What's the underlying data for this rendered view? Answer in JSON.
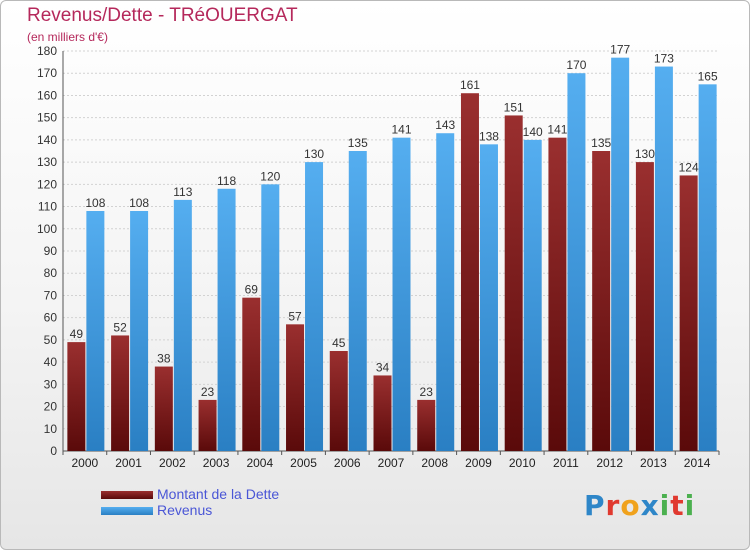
{
  "chart_data": {
    "type": "bar",
    "title": "Revenus/Dette - TRéOUERGAT",
    "subtitle": "(en milliers d'€)",
    "categories": [
      "2000",
      "2001",
      "2002",
      "2003",
      "2004",
      "2005",
      "2006",
      "2007",
      "2008",
      "2009",
      "2010",
      "2011",
      "2012",
      "2013",
      "2014"
    ],
    "series": [
      {
        "name": "Montant de la Dette",
        "color": "#7a1a1a",
        "values": [
          49,
          52,
          38,
          23,
          69,
          57,
          45,
          34,
          23,
          161,
          151,
          141,
          135,
          130,
          124
        ]
      },
      {
        "name": "Revenus",
        "color": "#3b97dd",
        "values": [
          108,
          108,
          113,
          118,
          120,
          130,
          135,
          141,
          143,
          138,
          140,
          170,
          177,
          173,
          165
        ]
      }
    ],
    "ylim": [
      0,
      180
    ],
    "ytick_step": 10,
    "grid": true,
    "legend_position": "bottom-left"
  },
  "branding": {
    "logo_letters": [
      {
        "char": "P",
        "color": "#2e86c8"
      },
      {
        "char": "r",
        "color": "#e0392f"
      },
      {
        "char": "o",
        "color": "#f0a21c"
      },
      {
        "char": "x",
        "color": "#2e86c8"
      },
      {
        "char": "i",
        "color": "#4bb04f"
      },
      {
        "char": "t",
        "color": "#e0392f"
      },
      {
        "char": "i",
        "color": "#4bb04f"
      }
    ]
  }
}
